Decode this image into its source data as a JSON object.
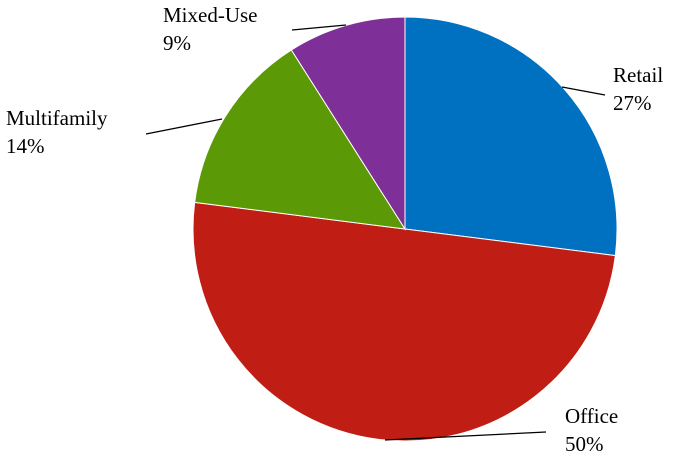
{
  "chart_data": {
    "type": "pie",
    "title": "",
    "start_angle_deg": 0,
    "direction": "clockwise",
    "slices": [
      {
        "label": "Retail",
        "value": 27,
        "value_label": "27%",
        "color": "#0070C0"
      },
      {
        "label": "Office",
        "value": 50,
        "value_label": "50%",
        "color": "#C01E14"
      },
      {
        "label": "Multifamily",
        "value": 14,
        "value_label": "14%",
        "color": "#5B9A06"
      },
      {
        "label": "Mixed-Use",
        "value": 9,
        "value_label": "9%",
        "color": "#7F3098"
      }
    ],
    "legend": "none",
    "label_style": "outside with leader lines"
  }
}
